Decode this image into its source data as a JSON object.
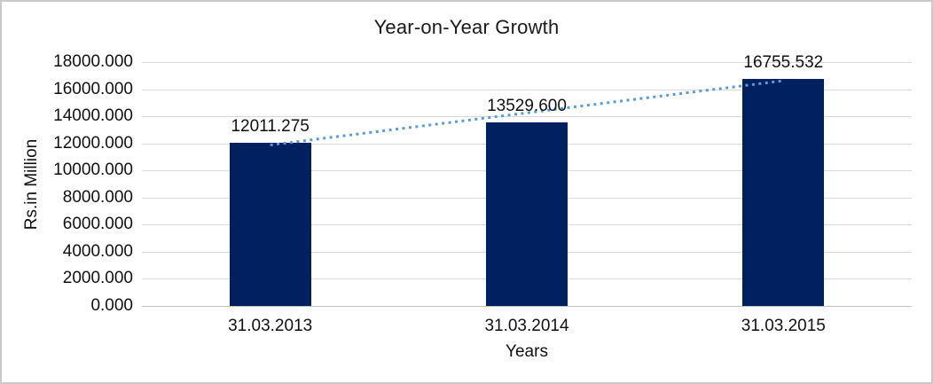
{
  "chart_data": {
    "type": "bar",
    "title": "Year-on-Year Growth",
    "categories": [
      "31.03.2013",
      "31.03.2014",
      "31.03.2015"
    ],
    "values": [
      12011.275,
      13529.6,
      16755.532
    ],
    "data_labels": [
      "12011.275",
      "13529.600",
      "16755.532"
    ],
    "xlabel": "Years",
    "ylabel": "Rs.in Million",
    "ylim": [
      0,
      18000
    ],
    "ytick_step": 2000,
    "ytick_labels": [
      "0.000",
      "2000.000",
      "4000.000",
      "6000.000",
      "8000.000",
      "10000.000",
      "12000.000",
      "14000.000",
      "16000.000",
      "18000.000"
    ],
    "grid": true,
    "legend": "none",
    "trendline": {
      "style": "dotted",
      "start_value": 12011.275,
      "end_value": 16755.532
    },
    "colors": {
      "bar": "#002060",
      "trendline": "#5b9bd5",
      "gridline": "#d9d9d9",
      "axis_line": "#c3c3c3",
      "text": "#111111",
      "frame": "#c9c9c9"
    }
  }
}
